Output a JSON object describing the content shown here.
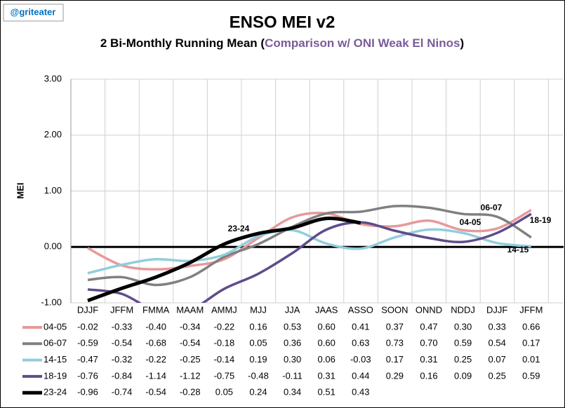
{
  "chart_data": {
    "type": "line",
    "handle": "@griteater",
    "title": "ENSO MEI v2",
    "subtitle": "2 Bi-Monthly Running Mean (",
    "subtitle_highlight": "Comparison w/ ONI Weak El Ninos",
    "subtitle_end": ")",
    "ylabel": "MEI",
    "categories": [
      "DJJF",
      "JFFM",
      "FMMA",
      "MAAM",
      "AMMJ",
      "MJJ",
      "JJA",
      "JAAS",
      "ASSO",
      "SOON",
      "ONND",
      "NDDJ",
      "DJJF",
      "JFFM"
    ],
    "ylim": [
      -1,
      3
    ],
    "yticks": [
      {
        "value": -1,
        "label": "-1.00"
      },
      {
        "value": 0,
        "label": "0.00"
      },
      {
        "value": 1,
        "label": "1.00"
      },
      {
        "value": 2,
        "label": "2.00"
      },
      {
        "value": 3,
        "label": "3.00"
      }
    ],
    "grid": true,
    "series": [
      {
        "name": "04-05",
        "color": "#e6999a",
        "values": [
          -0.02,
          -0.33,
          -0.4,
          -0.34,
          -0.22,
          0.16,
          0.53,
          0.6,
          0.41,
          0.37,
          0.47,
          0.3,
          0.33,
          0.66
        ],
        "value_labels": [
          "-0.02",
          "-0.33",
          "-0.40",
          "-0.34",
          "-0.22",
          "0.16",
          "0.53",
          "0.60",
          "0.41",
          "0.37",
          "0.47",
          "0.30",
          "0.33",
          "0.66"
        ]
      },
      {
        "name": "06-07",
        "color": "#808080",
        "values": [
          -0.59,
          -0.54,
          -0.68,
          -0.54,
          -0.18,
          0.05,
          0.36,
          0.6,
          0.63,
          0.73,
          0.7,
          0.59,
          0.54,
          0.17
        ],
        "value_labels": [
          "-0.59",
          "-0.54",
          "-0.68",
          "-0.54",
          "-0.18",
          "0.05",
          "0.36",
          "0.60",
          "0.63",
          "0.73",
          "0.70",
          "0.59",
          "0.54",
          "0.17"
        ]
      },
      {
        "name": "14-15",
        "color": "#92cddc",
        "values": [
          -0.47,
          -0.32,
          -0.22,
          -0.25,
          -0.14,
          0.19,
          0.3,
          0.06,
          -0.03,
          0.17,
          0.31,
          0.25,
          0.07,
          0.01
        ],
        "value_labels": [
          "-0.47",
          "-0.32",
          "-0.22",
          "-0.25",
          "-0.14",
          "0.19",
          "0.30",
          "0.06",
          "-0.03",
          "0.17",
          "0.31",
          "0.25",
          "0.07",
          "0.01"
        ]
      },
      {
        "name": "18-19",
        "color": "#5f4b8b",
        "values": [
          -0.76,
          -0.84,
          -1.14,
          -1.12,
          -0.75,
          -0.48,
          -0.11,
          0.31,
          0.44,
          0.29,
          0.16,
          0.09,
          0.25,
          0.59
        ],
        "value_labels": [
          "-0.76",
          "-0.84",
          "-1.14",
          "-1.12",
          "-0.75",
          "-0.48",
          "-0.11",
          "0.31",
          "0.44",
          "0.29",
          "0.16",
          "0.09",
          "0.25",
          "0.59"
        ]
      },
      {
        "name": "23-24",
        "color": "#000000",
        "values": [
          -0.96,
          -0.74,
          -0.54,
          -0.28,
          0.05,
          0.24,
          0.34,
          0.51,
          0.43,
          null,
          null,
          null,
          null,
          null
        ],
        "value_labels": [
          "-0.96",
          "-0.74",
          "-0.54",
          "-0.28",
          "0.05",
          "0.24",
          "0.34",
          "0.51",
          "0.43",
          null,
          null,
          null,
          null,
          null
        ]
      }
    ]
  }
}
